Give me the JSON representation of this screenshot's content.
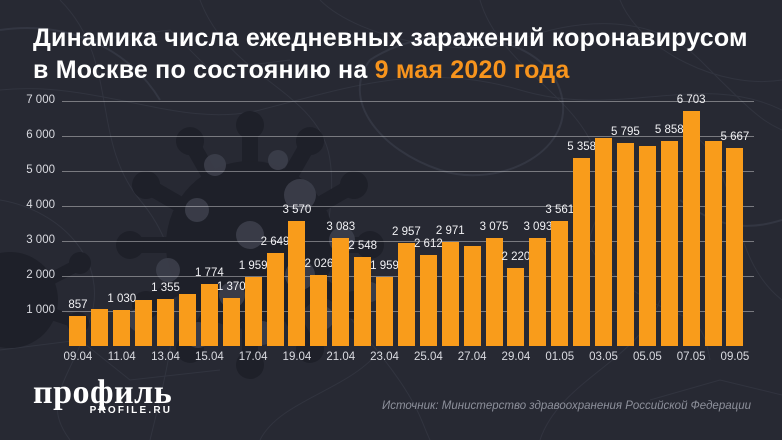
{
  "title": {
    "line1": "Динамика числа ежедневных заражений коронавирусом",
    "line2_prefix": "в Москве по состоянию на ",
    "line2_highlight": "9 мая 2020 года"
  },
  "colors": {
    "background": "#272933",
    "bar_orange": "#F99C1B",
    "title_highlight_orange": "#F7941D",
    "text_white": "#F1F1F4",
    "muted_gray": "#8D909B"
  },
  "chart_data": {
    "type": "bar",
    "title": "Динамика числа ежедневных заражений коронавирусом в Москве по состоянию на 9 мая 2020 года",
    "xlabel": "",
    "ylabel": "",
    "ylim": [
      0,
      7000
    ],
    "yticks": [
      1000,
      2000,
      3000,
      4000,
      5000,
      6000,
      7000
    ],
    "grid": true,
    "legend": "none",
    "dates": [
      "09.04",
      "10.04",
      "11.04",
      "12.04",
      "13.04",
      "14.04",
      "15.04",
      "16.04",
      "17.04",
      "18.04",
      "19.04",
      "20.04",
      "21.04",
      "22.04",
      "23.04",
      "24.04",
      "25.04",
      "26.04",
      "27.04",
      "28.04",
      "29.04",
      "30.04",
      "01.05",
      "02.05",
      "03.05",
      "04.05",
      "05.05",
      "06.05",
      "07.05",
      "08.05",
      "09.05"
    ],
    "values": [
      857,
      1071,
      1030,
      1306,
      1355,
      1489,
      1774,
      1370,
      1959,
      2649,
      3570,
      2026,
      3083,
      2548,
      1959,
      2957,
      2612,
      2971,
      2850,
      3075,
      2220,
      3093,
      3561,
      5358,
      5948,
      5795,
      5714,
      5858,
      6703,
      5846,
      5667
    ],
    "bar_labels": [
      "857",
      null,
      "1 030",
      null,
      "1 355",
      null,
      "1 774",
      "1 370",
      "1 959",
      "2 649",
      "3 570",
      "2 026",
      "3 083",
      "2 548",
      "1 959",
      "2 957",
      "2 612",
      "2 971",
      null,
      "3 075",
      "2 220",
      "3 093",
      "3 561",
      "5 358",
      null,
      "5 795",
      null,
      "5 858",
      "6 703",
      null,
      "5 667"
    ],
    "x_tick_labels": [
      "09.04",
      "11.04",
      "13.04",
      "15.04",
      "17.04",
      "19.04",
      "21.04",
      "23.04",
      "25.04",
      "27.04",
      "29.04",
      "01.05",
      "03.05",
      "05.05",
      "07.05",
      "09.05"
    ]
  },
  "footer": {
    "logo_text": "профиль",
    "logo_sub": "PROFILE.RU",
    "source": "Источник: Министерство здравоохранения Российской Федерации"
  }
}
